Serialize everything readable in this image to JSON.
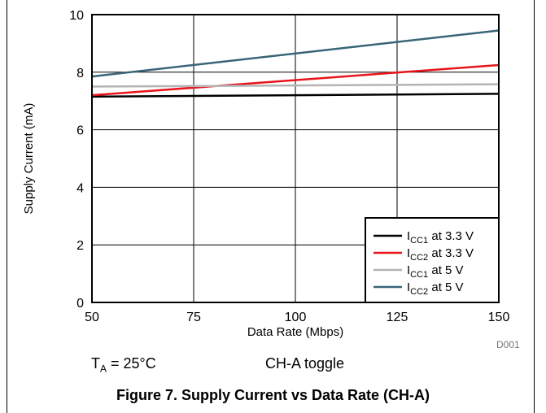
{
  "figure": {
    "chart_id": "D001",
    "condition_label": "T",
    "condition_sub": "A",
    "condition_value": " = 25°C",
    "mode_note": "CH-A toggle",
    "caption": "Figure 7. Supply Current vs Data Rate (CH-A)"
  },
  "chart_data": {
    "type": "line",
    "title": "",
    "xlabel": "Data Rate (Mbps)",
    "ylabel": "Supply Current (mA)",
    "xlim": [
      50,
      150
    ],
    "ylim": [
      0,
      10
    ],
    "xticks": [
      50,
      75,
      100,
      125,
      150
    ],
    "yticks": [
      0,
      2,
      4,
      6,
      8,
      10
    ],
    "grid": true,
    "legend_position": "bottom-right",
    "series": [
      {
        "name": "ICC1 at 3.3 V",
        "label_main": "I",
        "label_sub": "CC1",
        "label_rest": " at 3.3 V",
        "color": "#000000",
        "x": [
          50,
          150
        ],
        "y": [
          7.15,
          7.25
        ]
      },
      {
        "name": "ICC2 at 3.3 V",
        "label_main": "I",
        "label_sub": "CC2",
        "label_rest": " at 3.3 V",
        "color": "#e8141c",
        "x": [
          50,
          150
        ],
        "y": [
          7.2,
          8.25
        ]
      },
      {
        "name": "ICC1 at 5 V",
        "label_main": "I",
        "label_sub": "CC1",
        "label_rest": " at 5 V",
        "color": "#b4b4b4",
        "x": [
          50,
          150
        ],
        "y": [
          7.5,
          7.58
        ]
      },
      {
        "name": "ICC2 at 5 V",
        "label_main": "I",
        "label_sub": "CC2",
        "label_rest": " at 5 V",
        "color": "#3a6478",
        "x": [
          50,
          150
        ],
        "y": [
          7.85,
          9.45
        ]
      }
    ]
  }
}
